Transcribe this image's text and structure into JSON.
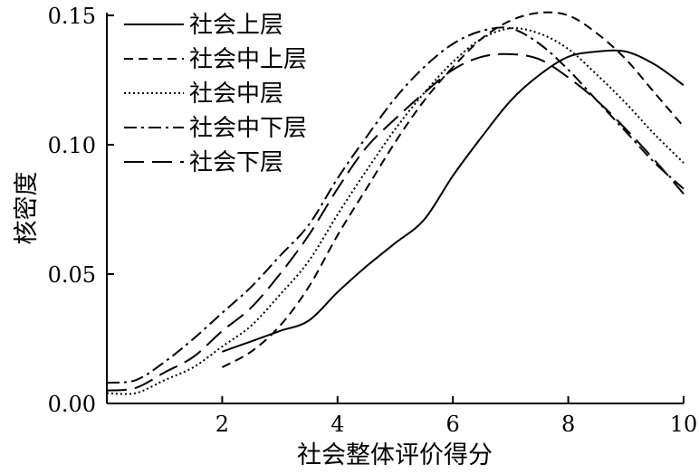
{
  "chart_data": {
    "type": "line",
    "xlabel": "社会整体评价得分",
    "ylabel": "核密度",
    "xlim": [
      0,
      10
    ],
    "ylim": [
      0,
      0.15
    ],
    "x_ticks": [
      2,
      4,
      6,
      8,
      10
    ],
    "x_tick_labels": [
      "2",
      "4",
      "6",
      "8",
      "10"
    ],
    "y_ticks": [
      0,
      0.05,
      0.1,
      0.15
    ],
    "y_tick_labels": [
      "0.00",
      "0.05",
      "0.10",
      "0.15"
    ],
    "legend_position": "top-left",
    "grid": false,
    "series": [
      {
        "name": "社会上层",
        "dash": "solid",
        "x": [
          2.0,
          2.5,
          3.0,
          3.5,
          4.0,
          4.5,
          5.0,
          5.5,
          6.0,
          6.5,
          7.0,
          7.5,
          8.0,
          8.5,
          9.0,
          9.5,
          10.0
        ],
        "y": [
          0.02,
          0.024,
          0.028,
          0.032,
          0.043,
          0.053,
          0.062,
          0.071,
          0.088,
          0.103,
          0.117,
          0.127,
          0.134,
          0.136,
          0.136,
          0.131,
          0.123
        ]
      },
      {
        "name": "社会中上层",
        "dash": "dashed",
        "x": [
          2.0,
          2.5,
          3.0,
          3.5,
          4.0,
          4.5,
          5.0,
          5.5,
          6.0,
          6.5,
          7.0,
          7.5,
          8.0,
          8.5,
          9.0,
          9.5,
          10.0
        ],
        "y": [
          0.014,
          0.02,
          0.03,
          0.045,
          0.065,
          0.083,
          0.101,
          0.117,
          0.13,
          0.141,
          0.148,
          0.151,
          0.15,
          0.143,
          0.133,
          0.12,
          0.107
        ]
      },
      {
        "name": "社会中层",
        "dash": "dotted",
        "x": [
          0.0,
          0.5,
          1.0,
          1.5,
          2.0,
          2.5,
          3.0,
          3.5,
          4.0,
          4.5,
          5.0,
          5.5,
          6.0,
          6.5,
          7.0,
          7.5,
          8.0,
          8.5,
          9.0,
          9.5,
          10.0
        ],
        "y": [
          0.004,
          0.004,
          0.009,
          0.014,
          0.022,
          0.03,
          0.042,
          0.055,
          0.073,
          0.09,
          0.106,
          0.12,
          0.132,
          0.141,
          0.145,
          0.143,
          0.137,
          0.127,
          0.116,
          0.104,
          0.093
        ]
      },
      {
        "name": "社会中下层",
        "dash": "dashdot",
        "x": [
          0.0,
          0.5,
          1.0,
          1.5,
          2.0,
          2.5,
          3.0,
          3.5,
          4.0,
          4.5,
          5.0,
          5.5,
          6.0,
          6.5,
          7.0,
          7.5,
          8.0,
          8.5,
          9.0,
          9.5,
          10.0
        ],
        "y": [
          0.008,
          0.009,
          0.016,
          0.025,
          0.035,
          0.045,
          0.057,
          0.069,
          0.087,
          0.103,
          0.118,
          0.13,
          0.139,
          0.144,
          0.145,
          0.139,
          0.129,
          0.117,
          0.105,
          0.093,
          0.083
        ]
      },
      {
        "name": "社会下层",
        "dash": "longdash",
        "x": [
          0.0,
          0.5,
          1.0,
          1.5,
          2.0,
          2.5,
          3.0,
          3.5,
          4.0,
          4.5,
          5.0,
          5.5,
          6.0,
          6.5,
          7.0,
          7.5,
          8.0,
          8.5,
          9.0,
          9.5,
          10.0
        ],
        "y": [
          0.005,
          0.006,
          0.012,
          0.018,
          0.028,
          0.037,
          0.05,
          0.065,
          0.083,
          0.099,
          0.11,
          0.12,
          0.129,
          0.134,
          0.135,
          0.133,
          0.126,
          0.117,
          0.106,
          0.094,
          0.081
        ]
      }
    ]
  }
}
